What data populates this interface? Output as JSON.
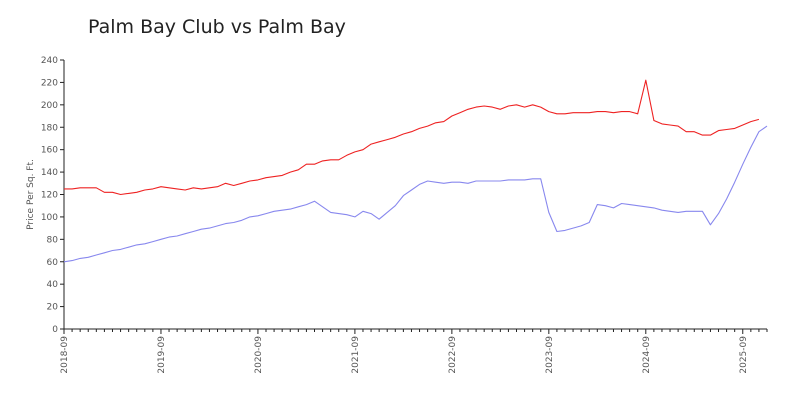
{
  "chart_data": {
    "type": "line",
    "title": "Palm Bay Club vs Palm Bay",
    "xlabel": "",
    "ylabel": "Price Per Sq. Ft.",
    "ylim": [
      0,
      240
    ],
    "yticks": [
      0,
      20,
      40,
      60,
      80,
      100,
      120,
      140,
      160,
      180,
      200,
      220,
      240
    ],
    "xlim": [
      "2018-09",
      "2025-12"
    ],
    "xtick_labels": [
      "2018-09",
      "2019-09",
      "2020-09",
      "2021-09",
      "2022-09",
      "2023-09",
      "2024-09",
      "2025-09"
    ],
    "grid": false,
    "legend": "none",
    "series": [
      {
        "color": "#ee2222",
        "points": [
          [
            "2018-09",
            125
          ],
          [
            "2018-10",
            125
          ],
          [
            "2018-11",
            126
          ],
          [
            "2018-12",
            126
          ],
          [
            "2019-01",
            126
          ],
          [
            "2019-02",
            122
          ],
          [
            "2019-03",
            122
          ],
          [
            "2019-04",
            120
          ],
          [
            "2019-05",
            121
          ],
          [
            "2019-06",
            122
          ],
          [
            "2019-07",
            124
          ],
          [
            "2019-08",
            125
          ],
          [
            "2019-09",
            127
          ],
          [
            "2019-10",
            126
          ],
          [
            "2019-11",
            125
          ],
          [
            "2019-12",
            124
          ],
          [
            "2020-01",
            126
          ],
          [
            "2020-02",
            125
          ],
          [
            "2020-03",
            126
          ],
          [
            "2020-04",
            127
          ],
          [
            "2020-05",
            130
          ],
          [
            "2020-06",
            128
          ],
          [
            "2020-07",
            130
          ],
          [
            "2020-08",
            132
          ],
          [
            "2020-09",
            133
          ],
          [
            "2020-10",
            135
          ],
          [
            "2020-11",
            136
          ],
          [
            "2020-12",
            137
          ],
          [
            "2021-01",
            140
          ],
          [
            "2021-02",
            142
          ],
          [
            "2021-03",
            147
          ],
          [
            "2021-04",
            147
          ],
          [
            "2021-05",
            150
          ],
          [
            "2021-06",
            151
          ],
          [
            "2021-07",
            151
          ],
          [
            "2021-08",
            155
          ],
          [
            "2021-09",
            158
          ],
          [
            "2021-10",
            160
          ],
          [
            "2021-11",
            165
          ],
          [
            "2021-12",
            167
          ],
          [
            "2022-01",
            169
          ],
          [
            "2022-02",
            171
          ],
          [
            "2022-03",
            174
          ],
          [
            "2022-04",
            176
          ],
          [
            "2022-05",
            179
          ],
          [
            "2022-06",
            181
          ],
          [
            "2022-07",
            184
          ],
          [
            "2022-08",
            185
          ],
          [
            "2022-09",
            190
          ],
          [
            "2022-10",
            193
          ],
          [
            "2022-11",
            196
          ],
          [
            "2022-12",
            198
          ],
          [
            "2023-01",
            199
          ],
          [
            "2023-02",
            198
          ],
          [
            "2023-03",
            196
          ],
          [
            "2023-04",
            199
          ],
          [
            "2023-05",
            200
          ],
          [
            "2023-06",
            198
          ],
          [
            "2023-07",
            200
          ],
          [
            "2023-08",
            198
          ],
          [
            "2023-09",
            194
          ],
          [
            "2023-10",
            192
          ],
          [
            "2023-11",
            192
          ],
          [
            "2023-12",
            193
          ],
          [
            "2024-01",
            193
          ],
          [
            "2024-02",
            193
          ],
          [
            "2024-03",
            194
          ],
          [
            "2024-04",
            194
          ],
          [
            "2024-05",
            193
          ],
          [
            "2024-06",
            194
          ],
          [
            "2024-07",
            194
          ],
          [
            "2024-08",
            192
          ],
          [
            "2024-09",
            222
          ],
          [
            "2024-10",
            186
          ],
          [
            "2024-11",
            183
          ],
          [
            "2024-12",
            182
          ],
          [
            "2025-01",
            181
          ],
          [
            "2025-02",
            176
          ],
          [
            "2025-03",
            176
          ],
          [
            "2025-04",
            173
          ],
          [
            "2025-05",
            173
          ],
          [
            "2025-06",
            177
          ],
          [
            "2025-07",
            178
          ],
          [
            "2025-08",
            179
          ],
          [
            "2025-09",
            182
          ],
          [
            "2025-10",
            185
          ],
          [
            "2025-11",
            187
          ]
        ]
      },
      {
        "color": "#8888ee",
        "points": [
          [
            "2018-09",
            60
          ],
          [
            "2018-10",
            61
          ],
          [
            "2018-11",
            63
          ],
          [
            "2018-12",
            64
          ],
          [
            "2019-01",
            66
          ],
          [
            "2019-02",
            68
          ],
          [
            "2019-03",
            70
          ],
          [
            "2019-04",
            71
          ],
          [
            "2019-05",
            73
          ],
          [
            "2019-06",
            75
          ],
          [
            "2019-07",
            76
          ],
          [
            "2019-08",
            78
          ],
          [
            "2019-09",
            80
          ],
          [
            "2019-10",
            82
          ],
          [
            "2019-11",
            83
          ],
          [
            "2019-12",
            85
          ],
          [
            "2020-01",
            87
          ],
          [
            "2020-02",
            89
          ],
          [
            "2020-03",
            90
          ],
          [
            "2020-04",
            92
          ],
          [
            "2020-05",
            94
          ],
          [
            "2020-06",
            95
          ],
          [
            "2020-07",
            97
          ],
          [
            "2020-08",
            100
          ],
          [
            "2020-09",
            101
          ],
          [
            "2020-10",
            103
          ],
          [
            "2020-11",
            105
          ],
          [
            "2020-12",
            106
          ],
          [
            "2021-01",
            107
          ],
          [
            "2021-02",
            109
          ],
          [
            "2021-03",
            111
          ],
          [
            "2021-04",
            114
          ],
          [
            "2021-05",
            109
          ],
          [
            "2021-06",
            104
          ],
          [
            "2021-07",
            103
          ],
          [
            "2021-08",
            102
          ],
          [
            "2021-09",
            100
          ],
          [
            "2021-10",
            105
          ],
          [
            "2021-11",
            103
          ],
          [
            "2021-12",
            98
          ],
          [
            "2022-01",
            104
          ],
          [
            "2022-02",
            110
          ],
          [
            "2022-03",
            119
          ],
          [
            "2022-04",
            124
          ],
          [
            "2022-05",
            129
          ],
          [
            "2022-06",
            132
          ],
          [
            "2022-07",
            131
          ],
          [
            "2022-08",
            130
          ],
          [
            "2022-09",
            131
          ],
          [
            "2022-10",
            131
          ],
          [
            "2022-11",
            130
          ],
          [
            "2022-12",
            132
          ],
          [
            "2023-01",
            132
          ],
          [
            "2023-02",
            132
          ],
          [
            "2023-03",
            132
          ],
          [
            "2023-04",
            133
          ],
          [
            "2023-05",
            133
          ],
          [
            "2023-06",
            133
          ],
          [
            "2023-07",
            134
          ],
          [
            "2023-08",
            134
          ],
          [
            "2023-09",
            104
          ],
          [
            "2023-10",
            87
          ],
          [
            "2023-11",
            88
          ],
          [
            "2023-12",
            90
          ],
          [
            "2024-01",
            92
          ],
          [
            "2024-02",
            95
          ],
          [
            "2024-03",
            111
          ],
          [
            "2024-04",
            110
          ],
          [
            "2024-05",
            108
          ],
          [
            "2024-06",
            112
          ],
          [
            "2024-07",
            111
          ],
          [
            "2024-08",
            110
          ],
          [
            "2024-09",
            109
          ],
          [
            "2024-10",
            108
          ],
          [
            "2024-11",
            106
          ],
          [
            "2024-12",
            105
          ],
          [
            "2025-01",
            104
          ],
          [
            "2025-02",
            105
          ],
          [
            "2025-03",
            105
          ],
          [
            "2025-04",
            105
          ],
          [
            "2025-05",
            93
          ],
          [
            "2025-06",
            103
          ],
          [
            "2025-07",
            116
          ],
          [
            "2025-08",
            131
          ],
          [
            "2025-09",
            147
          ],
          [
            "2025-10",
            162
          ],
          [
            "2025-11",
            176
          ],
          [
            "2025-12",
            181
          ]
        ]
      }
    ]
  }
}
